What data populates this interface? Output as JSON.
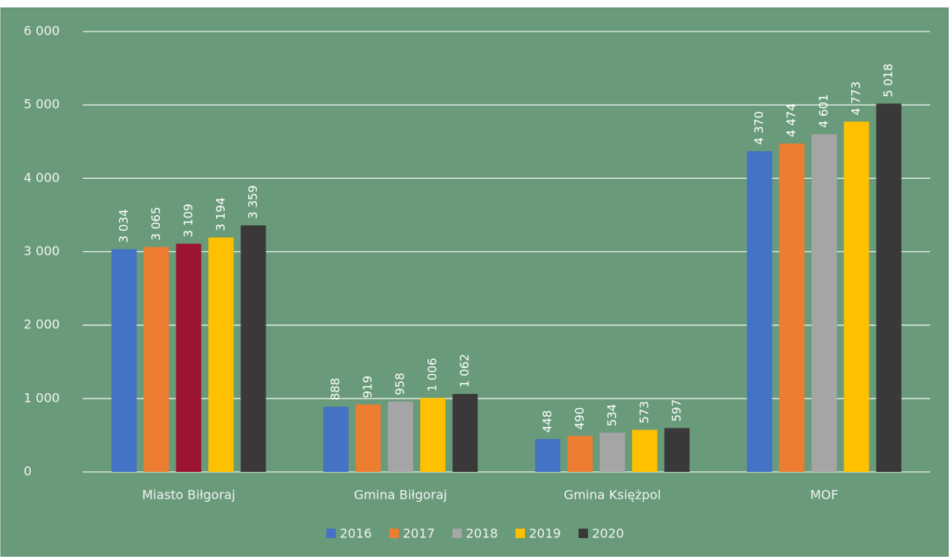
{
  "chart_data": {
    "type": "bar",
    "categories": [
      "Miasto Biłgoraj",
      "Gmina Biłgoraj",
      "Gmina Księżpol",
      "MOF"
    ],
    "series": [
      {
        "name": "2016",
        "color": "#4472c4",
        "values": [
          3034,
          888,
          448,
          4370
        ],
        "value_labels": [
          "3 034",
          "888",
          "448",
          "4 370"
        ]
      },
      {
        "name": "2017",
        "color": "#ed7d31",
        "values": [
          3065,
          919,
          490,
          4474
        ],
        "value_labels": [
          "3 065",
          "919",
          "490",
          "4 474"
        ]
      },
      {
        "name": "2018",
        "color": "#a5a5a5",
        "bar_colors": [
          "#9b1530",
          "#a5a5a5",
          "#a5a5a5",
          "#a5a5a5"
        ],
        "values": [
          3109,
          958,
          534,
          4601
        ],
        "value_labels": [
          "3 109",
          "958",
          "534",
          "4 601"
        ]
      },
      {
        "name": "2019",
        "color": "#ffc000",
        "values": [
          3194,
          1006,
          573,
          4773
        ],
        "value_labels": [
          "3 194",
          "1 006",
          "573",
          "4 773"
        ]
      },
      {
        "name": "2020",
        "color": "#3a3838",
        "values": [
          3359,
          1062,
          597,
          5018
        ],
        "value_labels": [
          "3 359",
          "1 062",
          "597",
          "5 018"
        ]
      }
    ],
    "ylim": [
      0,
      6000
    ],
    "yticks": [
      0,
      {
        "value": 1000,
        "label": "1 000"
      },
      {
        "value": 2000,
        "label": "2 000"
      },
      {
        "value": 3000,
        "label": "3 000"
      },
      {
        "value": 4000,
        "label": "4 000"
      },
      {
        "value": 5000,
        "label": "5 000"
      },
      {
        "value": 6000,
        "label": "6 000"
      }
    ],
    "grid": true,
    "legend": "bottom"
  }
}
